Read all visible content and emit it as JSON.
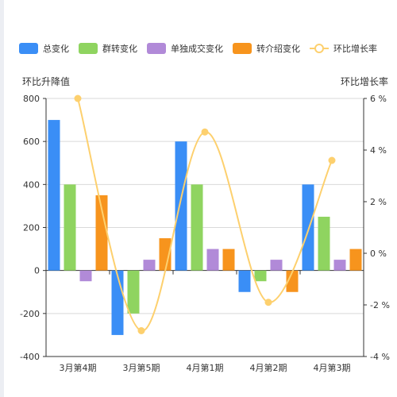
{
  "chart_data": {
    "type": "bar",
    "categories": [
      "3月第4期",
      "3月第5期",
      "4月第1期",
      "4月第2期",
      "4月第3期"
    ],
    "series": [
      {
        "name": "总变化",
        "type": "bar",
        "values": [
          700,
          -300,
          600,
          -100,
          400
        ],
        "color": "#3a8ef6"
      },
      {
        "name": "群转变化",
        "type": "bar",
        "values": [
          400,
          -200,
          400,
          -50,
          250
        ],
        "color": "#8fd460"
      },
      {
        "name": "单独成交变化",
        "type": "bar",
        "values": [
          -50,
          50,
          100,
          50,
          50
        ],
        "color": "#b18ad8"
      },
      {
        "name": "转介绍变化",
        "type": "bar",
        "values": [
          350,
          150,
          100,
          -100,
          100
        ],
        "color": "#f7941d"
      },
      {
        "name": "环比增长率",
        "type": "line",
        "axis": "right",
        "values": [
          6.0,
          -3.0,
          4.7,
          -1.9,
          3.6
        ],
        "color": "#fdd06e"
      }
    ],
    "ylabel": "环比升降值",
    "ylabel_right": "环比增长率",
    "ylim": [
      -400,
      800
    ],
    "yticks": [
      -400,
      -200,
      0,
      200,
      400,
      600,
      800
    ],
    "ylim_right": [
      -4,
      6
    ],
    "yticks_right": [
      "-4 %",
      "-2 %",
      "0 %",
      "2 %",
      "4 %",
      "6 %"
    ],
    "grid": true,
    "legend_position": "top"
  }
}
